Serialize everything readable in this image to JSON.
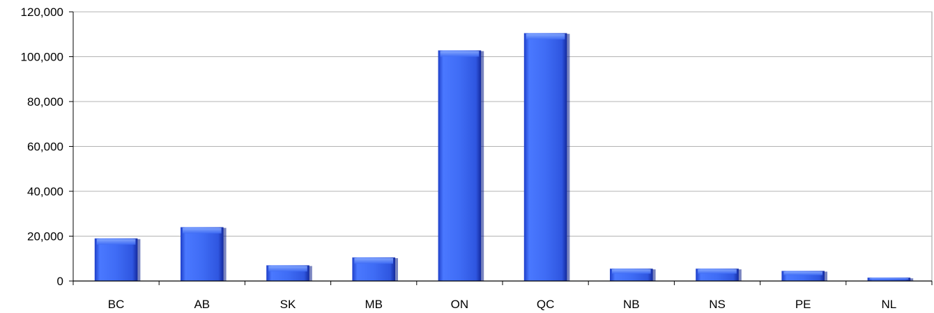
{
  "chart_data": {
    "type": "bar",
    "title": "",
    "xlabel": "",
    "ylabel": "",
    "categories": [
      "BC",
      "AB",
      "SK",
      "MB",
      "ON",
      "QC",
      "NB",
      "NS",
      "PE",
      "NL"
    ],
    "values": [
      19000,
      24000,
      7000,
      10500,
      102800,
      110500,
      5500,
      5500,
      4500,
      1500
    ],
    "ylim": [
      0,
      120000
    ],
    "yticks": [
      0,
      20000,
      40000,
      60000,
      80000,
      100000,
      120000
    ],
    "ytick_labels": [
      "0",
      "20,000",
      "40,000",
      "60,000",
      "80,000",
      "100,000",
      "120,000"
    ],
    "grid": true,
    "legend": "none",
    "bar_color": "#3f6cf5",
    "bar_shadow_color": "#0b1f8a",
    "grid_color": "#b3b3b3",
    "axis_color": "#000000"
  }
}
